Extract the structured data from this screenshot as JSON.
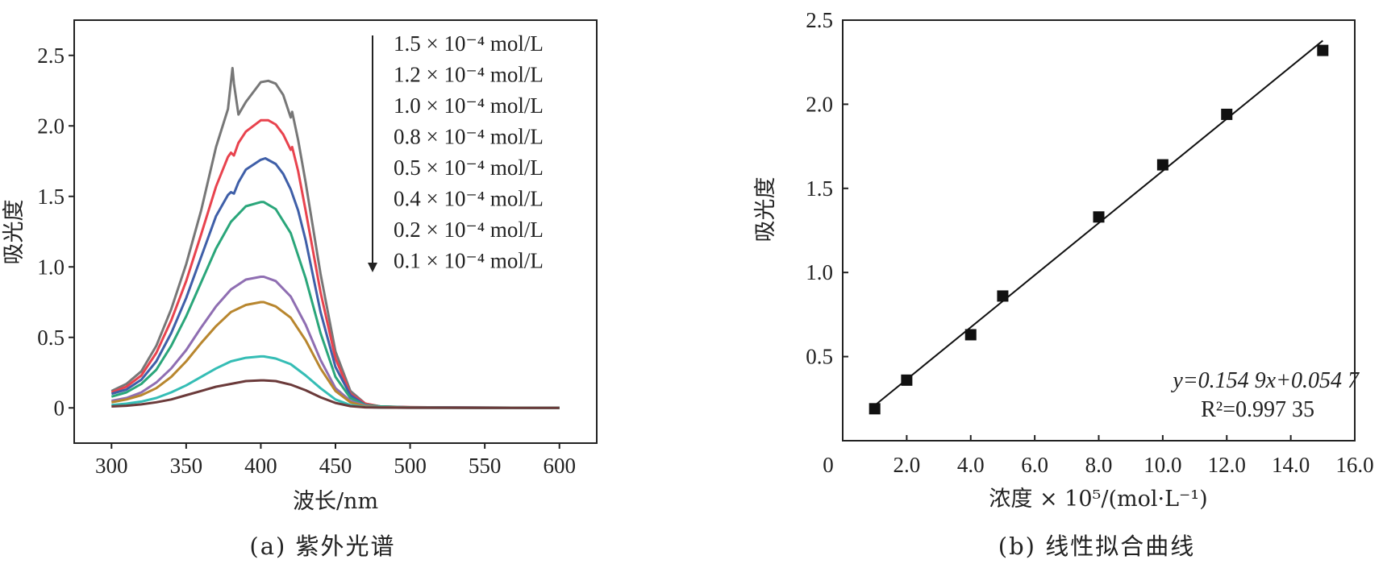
{
  "chart_data": [
    {
      "type": "line",
      "title": "",
      "caption": "(a) 紫外光谱",
      "xlabel": "波长/nm",
      "ylabel": "吸光度",
      "xlim": [
        275,
        625
      ],
      "ylim": [
        -0.25,
        2.75
      ],
      "xticks": [
        300,
        350,
        400,
        450,
        500,
        550,
        600
      ],
      "xtick_labels": [
        "300",
        "350",
        "400",
        "450",
        "500",
        "550",
        "600"
      ],
      "yticks": [
        0,
        0.5,
        1.0,
        1.5,
        2.0,
        2.5
      ],
      "ytick_labels": [
        "0",
        "0.5",
        "1.0",
        "1.5",
        "2.0",
        "2.5"
      ],
      "grid": false,
      "legend_position": "top-right",
      "legend_arrow": "down",
      "series": [
        {
          "name": "1.5 × 10⁻⁴ mol/L",
          "color": "#777777",
          "x": [
            300,
            310,
            320,
            330,
            340,
            350,
            360,
            370,
            378,
            381,
            382,
            385,
            390,
            400,
            405,
            410,
            415,
            420,
            421,
            425,
            430,
            440,
            450,
            460,
            470,
            480,
            500,
            550,
            600
          ],
          "y": [
            0.12,
            0.17,
            0.26,
            0.44,
            0.7,
            1.02,
            1.4,
            1.85,
            2.12,
            2.41,
            2.3,
            2.08,
            2.17,
            2.31,
            2.32,
            2.3,
            2.22,
            2.06,
            2.1,
            1.9,
            1.6,
            0.95,
            0.4,
            0.12,
            0.03,
            0.01,
            0.005,
            0.002,
            0.0
          ]
        },
        {
          "name": "1.2 × 10⁻⁴ mol/L",
          "color": "#e8434e",
          "x": [
            300,
            310,
            320,
            330,
            340,
            350,
            360,
            370,
            378,
            380,
            382,
            385,
            390,
            400,
            405,
            410,
            415,
            420,
            421,
            425,
            430,
            440,
            450,
            460,
            470,
            480,
            500,
            550,
            600
          ],
          "y": [
            0.11,
            0.15,
            0.23,
            0.39,
            0.62,
            0.9,
            1.23,
            1.57,
            1.78,
            1.81,
            1.79,
            1.88,
            1.96,
            2.04,
            2.04,
            2.01,
            1.94,
            1.83,
            1.85,
            1.68,
            1.4,
            0.82,
            0.35,
            0.1,
            0.03,
            0.01,
            0.005,
            0.002,
            0.0
          ]
        },
        {
          "name": "1.0 × 10⁻⁴ mol/L",
          "color": "#3f5fa8",
          "x": [
            300,
            310,
            320,
            330,
            340,
            350,
            360,
            370,
            378,
            380,
            382,
            385,
            390,
            400,
            403,
            410,
            415,
            420,
            425,
            430,
            440,
            450,
            460,
            470,
            480,
            500,
            550,
            600
          ],
          "y": [
            0.1,
            0.13,
            0.2,
            0.33,
            0.53,
            0.78,
            1.07,
            1.36,
            1.51,
            1.53,
            1.52,
            1.6,
            1.69,
            1.76,
            1.77,
            1.73,
            1.66,
            1.55,
            1.4,
            1.19,
            0.68,
            0.29,
            0.09,
            0.02,
            0.01,
            0.004,
            0.002,
            0.0
          ]
        },
        {
          "name": "0.8 × 10⁻⁴ mol/L",
          "color": "#2aa67a",
          "x": [
            300,
            310,
            320,
            330,
            340,
            350,
            360,
            370,
            380,
            390,
            400,
            402,
            410,
            420,
            430,
            440,
            450,
            460,
            470,
            480,
            500,
            550,
            600
          ],
          "y": [
            0.08,
            0.11,
            0.17,
            0.27,
            0.44,
            0.65,
            0.89,
            1.13,
            1.32,
            1.43,
            1.46,
            1.46,
            1.41,
            1.24,
            0.92,
            0.53,
            0.22,
            0.07,
            0.02,
            0.01,
            0.003,
            0.001,
            0.0
          ]
        },
        {
          "name": "0.5 × 10⁻⁴ mol/L",
          "color": "#8f6eb2",
          "x": [
            300,
            310,
            320,
            330,
            340,
            350,
            360,
            370,
            380,
            390,
            400,
            402,
            410,
            420,
            430,
            440,
            450,
            460,
            470,
            480,
            500,
            550,
            600
          ],
          "y": [
            0.05,
            0.07,
            0.11,
            0.18,
            0.28,
            0.41,
            0.57,
            0.72,
            0.84,
            0.91,
            0.93,
            0.93,
            0.9,
            0.79,
            0.59,
            0.34,
            0.14,
            0.05,
            0.015,
            0.005,
            0.002,
            0.001,
            0.0
          ]
        },
        {
          "name": "0.4 × 10⁻⁴ mol/L",
          "color": "#b8862e",
          "x": [
            300,
            310,
            320,
            330,
            340,
            350,
            360,
            370,
            380,
            390,
            400,
            402,
            410,
            420,
            430,
            440,
            450,
            460,
            470,
            480,
            500,
            550,
            600
          ],
          "y": [
            0.04,
            0.06,
            0.09,
            0.14,
            0.22,
            0.33,
            0.46,
            0.58,
            0.68,
            0.73,
            0.75,
            0.75,
            0.72,
            0.64,
            0.48,
            0.28,
            0.12,
            0.04,
            0.01,
            0.004,
            0.002,
            0.001,
            0.0
          ]
        },
        {
          "name": "0.2 × 10⁻⁴ mol/L",
          "color": "#35bdb5",
          "x": [
            300,
            310,
            320,
            330,
            340,
            350,
            360,
            370,
            380,
            390,
            400,
            402,
            410,
            420,
            430,
            440,
            450,
            460,
            470,
            480,
            500,
            550,
            600
          ],
          "y": [
            0.02,
            0.03,
            0.045,
            0.07,
            0.11,
            0.16,
            0.22,
            0.28,
            0.33,
            0.355,
            0.365,
            0.365,
            0.35,
            0.31,
            0.23,
            0.14,
            0.06,
            0.02,
            0.006,
            0.002,
            0.001,
            0.0,
            0.0
          ]
        },
        {
          "name": "0.1 × 10⁻⁴ mol/L",
          "color": "#6b3a3a",
          "x": [
            300,
            310,
            320,
            330,
            340,
            350,
            360,
            370,
            380,
            390,
            400,
            402,
            410,
            420,
            430,
            440,
            450,
            460,
            470,
            480,
            500,
            550,
            600
          ],
          "y": [
            0.01,
            0.015,
            0.025,
            0.04,
            0.06,
            0.09,
            0.12,
            0.15,
            0.17,
            0.19,
            0.195,
            0.195,
            0.19,
            0.165,
            0.125,
            0.075,
            0.035,
            0.012,
            0.004,
            0.002,
            0.001,
            0.0,
            0.0
          ]
        }
      ]
    },
    {
      "type": "scatter",
      "title": "",
      "caption": "(b) 线性拟合曲线",
      "xlabel": "浓度 × 10⁵/(mol·L⁻¹)",
      "ylabel": "吸光度",
      "xlim": [
        0,
        16.0
      ],
      "ylim": [
        0,
        2.5
      ],
      "xticks": [
        0,
        2,
        4,
        6,
        8,
        10,
        12,
        14,
        16
      ],
      "xtick_labels": [
        "0",
        "2.0",
        "4.0",
        "6.0",
        "8.0",
        "10.0",
        "12.0",
        "14.0",
        "16.0"
      ],
      "yticks": [
        0.5,
        1.0,
        1.5,
        2.0,
        2.5
      ],
      "ytick_labels": [
        "0.5",
        "1.0",
        "1.5",
        "2.0",
        "2.5"
      ],
      "grid": false,
      "series": [
        {
          "marker": "square",
          "color": "#111111",
          "x": [
            1,
            2,
            4,
            5,
            8,
            10,
            12,
            15
          ],
          "y": [
            0.19,
            0.36,
            0.63,
            0.86,
            1.33,
            1.64,
            1.94,
            2.32
          ]
        }
      ],
      "fit": {
        "slope": 0.1549,
        "intercept": 0.0547,
        "x_range": [
          1,
          15
        ],
        "equation_label": "y=0.154 9x+0.054 7",
        "r2_label": "R²=0.997 35"
      }
    }
  ]
}
